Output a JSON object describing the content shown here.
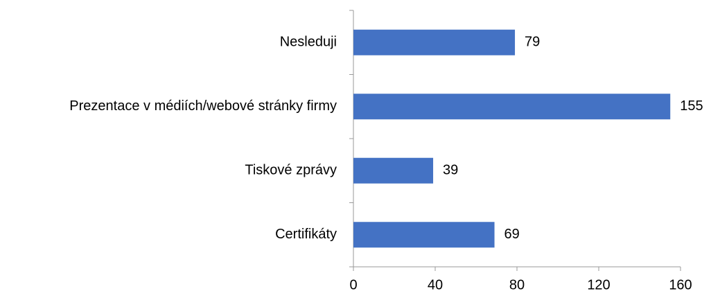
{
  "chart_data": {
    "type": "barh",
    "categories": [
      "Nesleduji",
      "Prezentace v médiích/webové stránky firmy",
      "Tiskové zprávy",
      "Certifikáty"
    ],
    "values": [
      79,
      155,
      39,
      69
    ],
    "color": "#4472c4",
    "xlim": [
      0,
      160
    ],
    "xticks": [
      0,
      40,
      80,
      120,
      160
    ],
    "grid": false
  }
}
